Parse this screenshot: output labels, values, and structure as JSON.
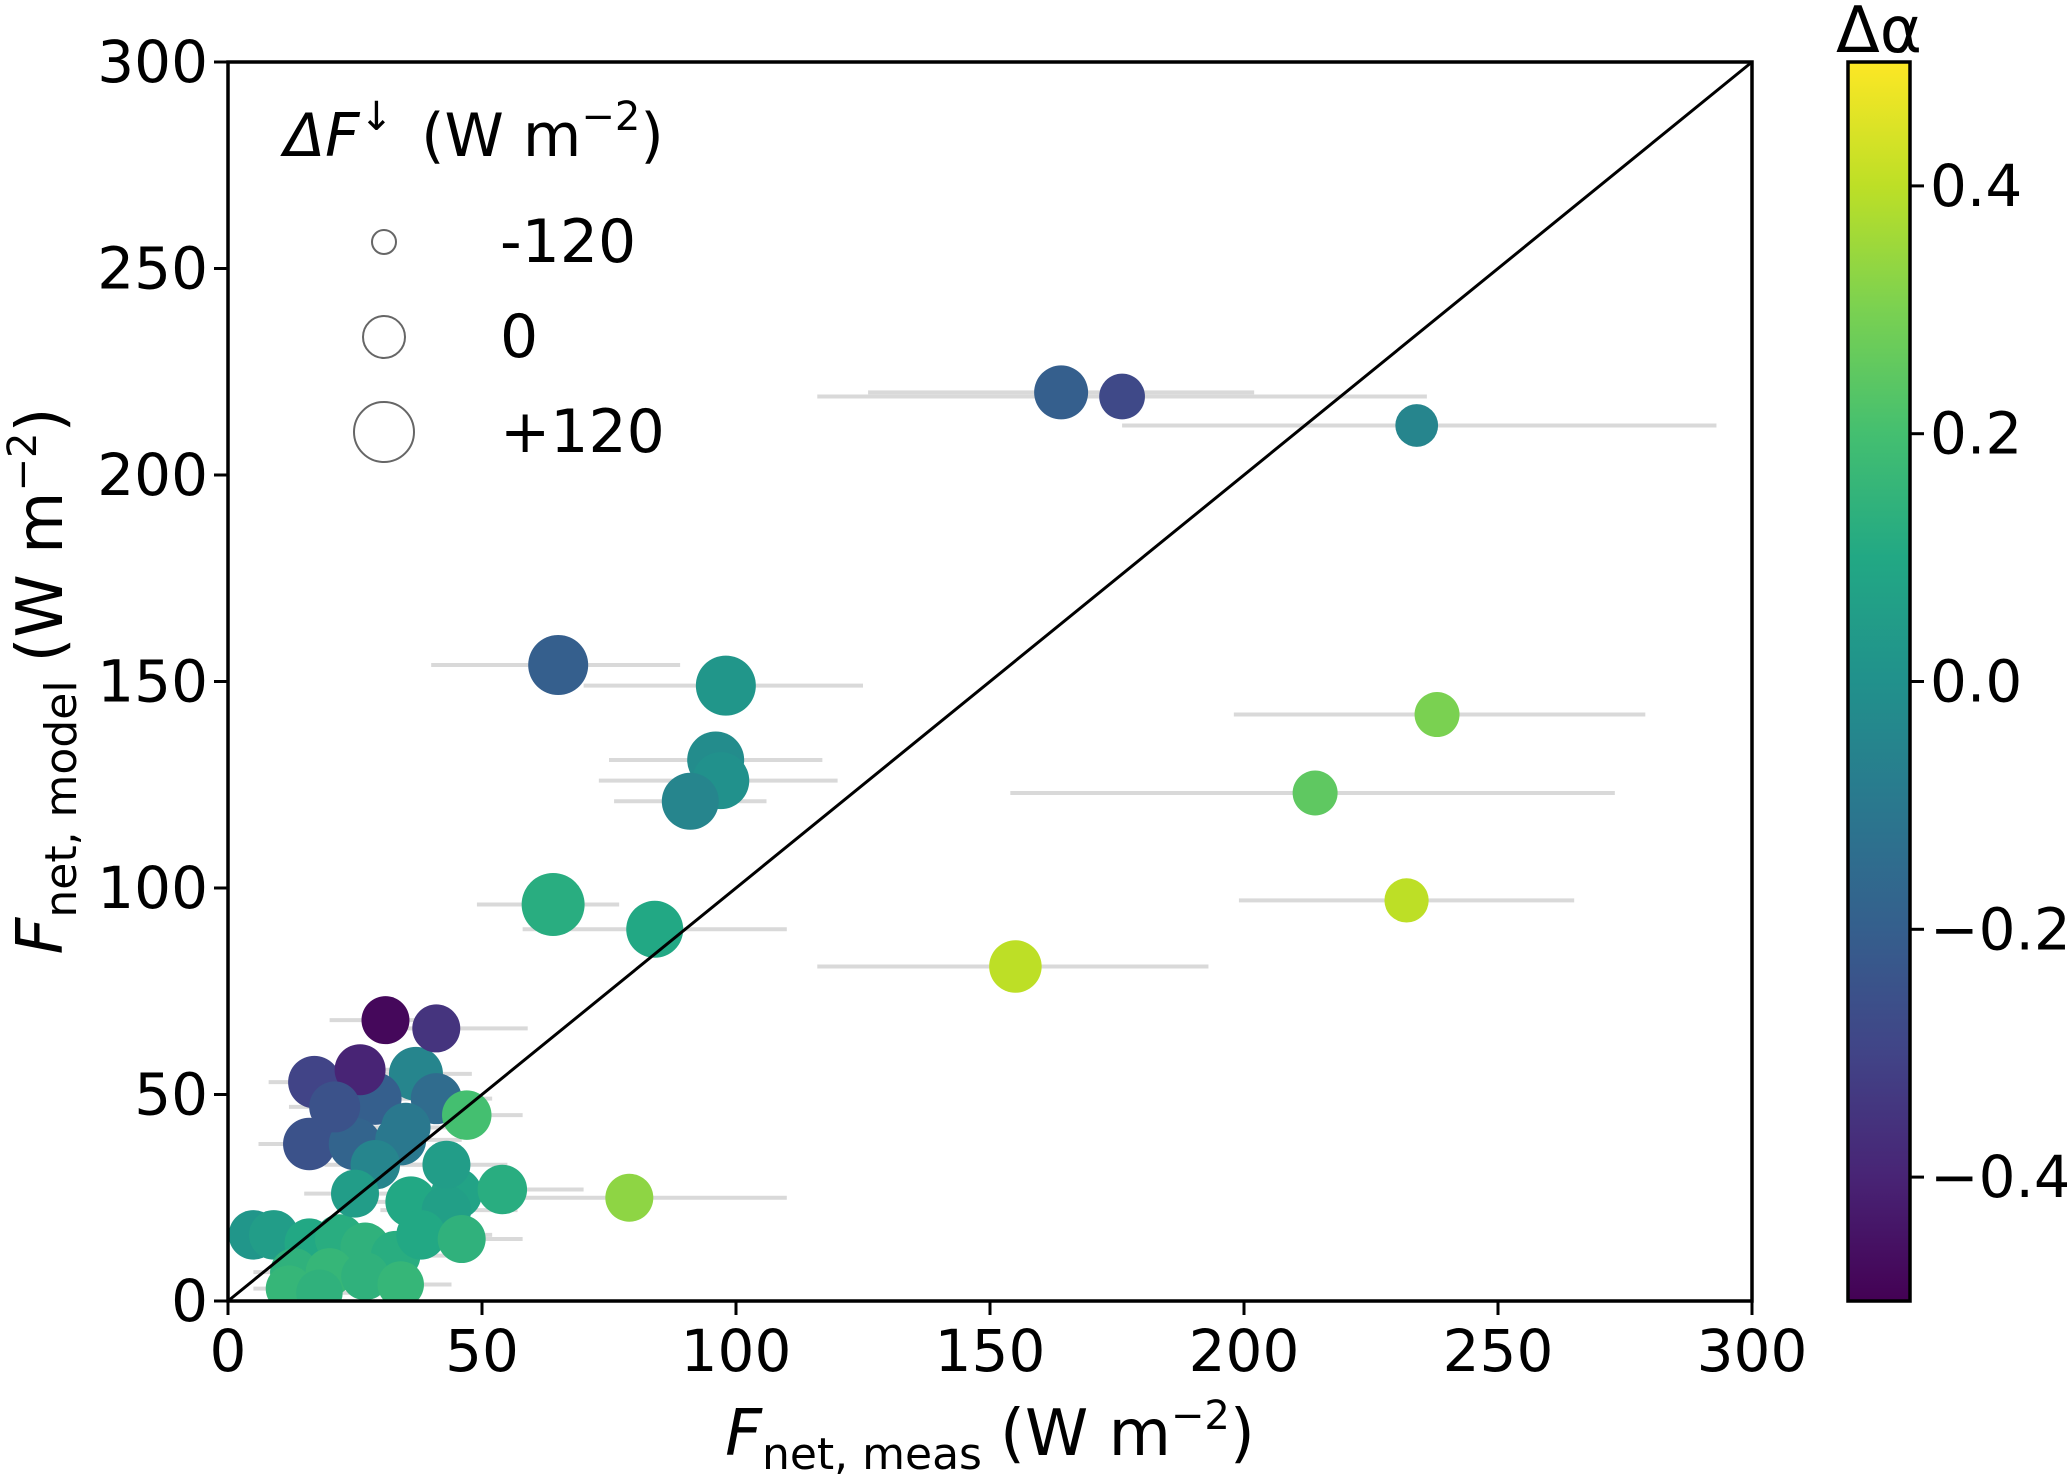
{
  "chart_data": {
    "type": "scatter",
    "xlabel": {
      "symbol": "F",
      "subscript": "net, meas",
      "unit": "(W m",
      "unit_exp": "−2",
      "unit_close": ")"
    },
    "ylabel": {
      "symbol": "F",
      "subscript": "net, model",
      "unit": "(W m",
      "unit_exp": "−2",
      "unit_close": ")"
    },
    "xlim": [
      0,
      300
    ],
    "ylim": [
      0,
      300
    ],
    "x_ticks": [
      "0",
      "50",
      "100",
      "150",
      "200",
      "250",
      "300"
    ],
    "y_ticks": [
      "0",
      "50",
      "100",
      "150",
      "200",
      "250",
      "300"
    ],
    "reference_line": "1:1",
    "grid": false,
    "colorbar": {
      "title": "Δα",
      "range": [
        -0.5,
        0.5
      ],
      "colormap": "viridis",
      "ticks": [
        -0.4,
        -0.2,
        0.0,
        0.2,
        0.4
      ],
      "tick_labels": [
        "−0.4",
        "−0.2",
        "0.0",
        "0.2",
        "0.4"
      ]
    },
    "size_legend": {
      "title_symbol": "ΔF",
      "title_sup": "↓",
      "title_unit": "(W m",
      "title_unit_exp": "−2",
      "title_unit_close": ")",
      "entries": [
        {
          "label": "-120",
          "value": -120
        },
        {
          "label": "0",
          "value": 0
        },
        {
          "label": "+120",
          "value": 120
        }
      ],
      "placement": "top-left"
    },
    "errorbar_color": "#d9d9d9",
    "points": [
      {
        "x": 164,
        "y": 220,
        "xerr": [
          126,
          202
        ],
        "c": -0.2,
        "s": 80
      },
      {
        "x": 176,
        "y": 219,
        "xerr": [
          116,
          236
        ],
        "c": -0.28,
        "s": 25
      },
      {
        "x": 234,
        "y": 212,
        "xerr": [
          176,
          293
        ],
        "c": -0.05,
        "s": 5
      },
      {
        "x": 65,
        "y": 154,
        "xerr": [
          40,
          89
        ],
        "c": -0.2,
        "s": 120
      },
      {
        "x": 98,
        "y": 149,
        "xerr": [
          70,
          125
        ],
        "c": 0.02,
        "s": 120
      },
      {
        "x": 96,
        "y": 131,
        "xerr": [
          75,
          117
        ],
        "c": -0.02,
        "s": 100
      },
      {
        "x": 97,
        "y": 126,
        "xerr": [
          73,
          120
        ],
        "c": 0.0,
        "s": 100
      },
      {
        "x": 91,
        "y": 121,
        "xerr": [
          76,
          106
        ],
        "c": -0.05,
        "s": 100
      },
      {
        "x": 238,
        "y": 142,
        "xerr": [
          198,
          279
        ],
        "c": 0.3,
        "s": 20
      },
      {
        "x": 214,
        "y": 123,
        "xerr": [
          154,
          273
        ],
        "c": 0.25,
        "s": 20
      },
      {
        "x": 232,
        "y": 97,
        "xerr": [
          199,
          265
        ],
        "c": 0.4,
        "s": 15
      },
      {
        "x": 64,
        "y": 96,
        "xerr": [
          49,
          77
        ],
        "c": 0.12,
        "s": 140
      },
      {
        "x": 84,
        "y": 90,
        "xerr": [
          58,
          110
        ],
        "c": 0.1,
        "s": 100
      },
      {
        "x": 155,
        "y": 81,
        "xerr": [
          116,
          193
        ],
        "c": 0.4,
        "s": 70
      },
      {
        "x": 79,
        "y": 25,
        "xerr": [
          48,
          110
        ],
        "c": 0.33,
        "s": 40
      },
      {
        "x": 31,
        "y": 68,
        "xerr": [
          20,
          42
        ],
        "c": -0.48,
        "s": 40
      },
      {
        "x": 41,
        "y": 66,
        "xerr": [
          30,
          59
        ],
        "c": -0.35,
        "s": 40
      },
      {
        "x": 17,
        "y": 53,
        "xerr": [
          8,
          28
        ],
        "c": -0.3,
        "s": 70
      },
      {
        "x": 26,
        "y": 56,
        "xerr": [
          16,
          37
        ],
        "c": -0.4,
        "s": 60
      },
      {
        "x": 37,
        "y": 55,
        "xerr": [
          26,
          48
        ],
        "c": -0.05,
        "s": 80
      },
      {
        "x": 29,
        "y": 49,
        "xerr": [
          18,
          40
        ],
        "c": -0.2,
        "s": 70
      },
      {
        "x": 41,
        "y": 49,
        "xerr": [
          30,
          52
        ],
        "c": -0.15,
        "s": 60
      },
      {
        "x": 21,
        "y": 47,
        "xerr": [
          12,
          32
        ],
        "c": -0.25,
        "s": 60
      },
      {
        "x": 47,
        "y": 45,
        "xerr": [
          36,
          58
        ],
        "c": 0.2,
        "s": 50
      },
      {
        "x": 35,
        "y": 42,
        "xerr": [
          24,
          46
        ],
        "c": -0.1,
        "s": 50
      },
      {
        "x": 16,
        "y": 38,
        "xerr": [
          6,
          27
        ],
        "c": -0.25,
        "s": 70
      },
      {
        "x": 25,
        "y": 38,
        "xerr": [
          15,
          36
        ],
        "c": -0.18,
        "s": 70
      },
      {
        "x": 34,
        "y": 39,
        "xerr": [
          24,
          46
        ],
        "c": -0.1,
        "s": 60
      },
      {
        "x": 29,
        "y": 33,
        "xerr": [
          19,
          40
        ],
        "c": -0.05,
        "s": 50
      },
      {
        "x": 43,
        "y": 33,
        "xerr": [
          32,
          55
        ],
        "c": 0.05,
        "s": 40
      },
      {
        "x": 25,
        "y": 26,
        "xerr": [
          15,
          35
        ],
        "c": 0.05,
        "s": 40
      },
      {
        "x": 36,
        "y": 24,
        "xerr": [
          24,
          48
        ],
        "c": 0.1,
        "s": 60
      },
      {
        "x": 45,
        "y": 26,
        "xerr": [
          33,
          57
        ],
        "c": 0.08,
        "s": 60
      },
      {
        "x": 54,
        "y": 27,
        "xerr": [
          42,
          70
        ],
        "c": 0.12,
        "s": 50
      },
      {
        "x": 43,
        "y": 22,
        "xerr": [
          30,
          57
        ],
        "c": 0.06,
        "s": 50
      },
      {
        "x": 5,
        "y": 16,
        "xerr": [
          1,
          15
        ],
        "c": 0.02,
        "s": 50
      },
      {
        "x": 9,
        "y": 16,
        "xerr": [
          3,
          18
        ],
        "c": 0.05,
        "s": 50
      },
      {
        "x": 16,
        "y": 14,
        "xerr": [
          6,
          26
        ],
        "c": 0.1,
        "s": 50
      },
      {
        "x": 22,
        "y": 15,
        "xerr": [
          11,
          33
        ],
        "c": 0.12,
        "s": 50
      },
      {
        "x": 27,
        "y": 13,
        "xerr": [
          15,
          40
        ],
        "c": 0.14,
        "s": 50
      },
      {
        "x": 33,
        "y": 11,
        "xerr": [
          20,
          46
        ],
        "c": 0.12,
        "s": 50
      },
      {
        "x": 38,
        "y": 16,
        "xerr": [
          25,
          52
        ],
        "c": 0.1,
        "s": 50
      },
      {
        "x": 46,
        "y": 15,
        "xerr": [
          34,
          58
        ],
        "c": 0.14,
        "s": 40
      },
      {
        "x": 13,
        "y": 7,
        "xerr": [
          5,
          22
        ],
        "c": 0.14,
        "s": 40
      },
      {
        "x": 20,
        "y": 7,
        "xerr": [
          10,
          31
        ],
        "c": 0.16,
        "s": 40
      },
      {
        "x": 27,
        "y": 6,
        "xerr": [
          16,
          37
        ],
        "c": 0.14,
        "s": 40
      },
      {
        "x": 12,
        "y": 3,
        "xerr": [
          5,
          20
        ],
        "c": 0.16,
        "s": 30
      },
      {
        "x": 18,
        "y": 2,
        "xerr": [
          9,
          28
        ],
        "c": 0.14,
        "s": 30
      },
      {
        "x": 34,
        "y": 4,
        "xerr": [
          24,
          44
        ],
        "c": 0.16,
        "s": 30
      }
    ]
  }
}
